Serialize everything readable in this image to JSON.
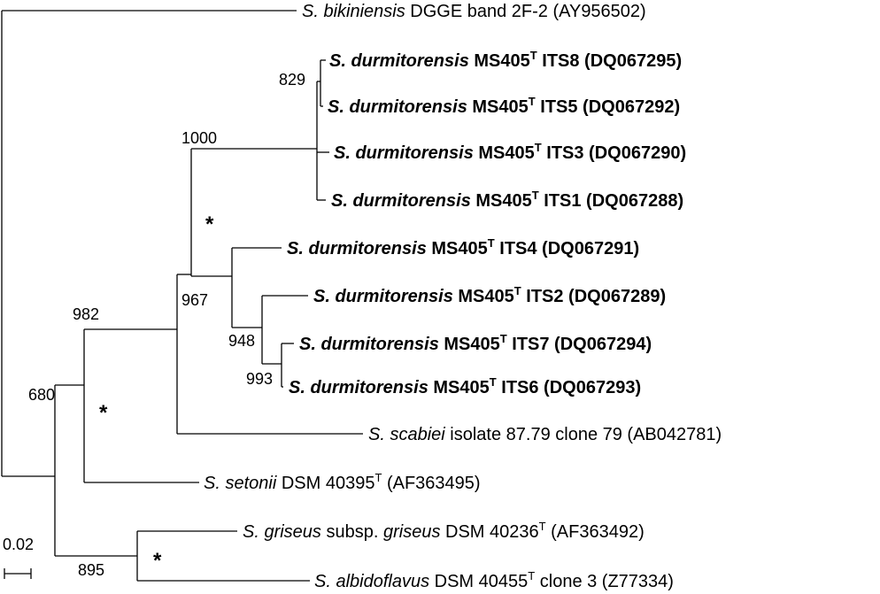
{
  "taxa": [
    {
      "species": "S. bikiniensis",
      "desc": " DGGE band 2F-2 (AY956502)",
      "type_mark": "",
      "rest": ""
    },
    {
      "species": "S. durmitorensis",
      "desc": " MS405",
      "type_mark": "T",
      "rest": " ITS8 (DQ067295)"
    },
    {
      "species": "S. durmitorensis",
      "desc": " MS405",
      "type_mark": "T",
      "rest": " ITS5 (DQ067292)"
    },
    {
      "species": "S. durmitorensis",
      "desc": " MS405",
      "type_mark": "T",
      "rest": " ITS3 (DQ067290)"
    },
    {
      "species": "S. durmitorensis",
      "desc": " MS405",
      "type_mark": "T",
      "rest": " ITS1 (DQ067288)"
    },
    {
      "species": "S. durmitorensis",
      "desc": " MS405",
      "type_mark": "T",
      "rest": " ITS4 (DQ067291)"
    },
    {
      "species": "S. durmitorensis",
      "desc": " MS405",
      "type_mark": "T",
      "rest": " ITS2 (DQ067289)"
    },
    {
      "species": "S. durmitorensis",
      "desc": " MS405",
      "type_mark": "T",
      "rest": " ITS7 (DQ067294)"
    },
    {
      "species": "S. durmitorensis",
      "desc": " MS405",
      "type_mark": "T",
      "rest": " ITS6 (DQ067293)"
    },
    {
      "species": "S. scabiei",
      "desc": " isolate 87.79 clone 79 (AB042781)",
      "type_mark": "",
      "rest": ""
    },
    {
      "species": "S. setonii",
      "desc": " DSM 40395",
      "type_mark": "T",
      "rest": " (AF363495)"
    },
    {
      "species": "S. griseus",
      "desc": " subsp. ",
      "desc_italic": "griseus",
      "desc2": " DSM 40236",
      "type_mark": "T",
      "rest": " (AF363492)"
    },
    {
      "species": "S. albidoflavus",
      "desc": " DSM 40455",
      "type_mark": "T",
      "rest": " clone 3 (Z77334)"
    }
  ],
  "bootstrap": [
    "829",
    "1000",
    "967",
    "948",
    "993",
    "982",
    "680",
    "895"
  ],
  "asterisk": "*",
  "scale_bar_label": "0.02"
}
